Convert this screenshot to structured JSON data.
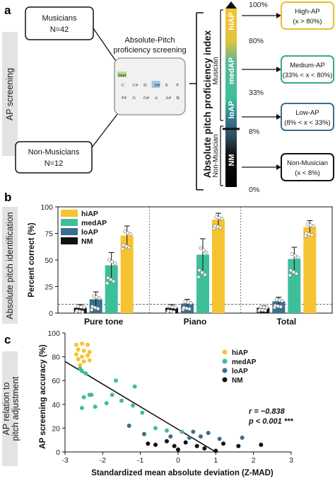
{
  "panel_a": {
    "letter": "a",
    "side_label": "AP screening",
    "musicians_box": [
      "Musicians",
      "N=42"
    ],
    "nonmusicians_box": [
      "Non-Musicians",
      "N=12"
    ],
    "screening_title": [
      "Absolute-Pitch",
      "proficiency screening"
    ],
    "screen": {
      "start_label": "Start",
      "row1": [
        "C",
        "C#",
        "D",
        "D#",
        "E",
        "F"
      ],
      "row2": [
        "F#",
        "G",
        "G#",
        "A",
        "A#",
        "B"
      ],
      "highlighted": "D#"
    },
    "index_title": "Absolute pitch proficiency index",
    "musician_label": "Musician",
    "nonmusician_label": "Non-Musician",
    "segments": [
      "hiAP",
      "medAP",
      "loAP",
      "NM"
    ],
    "percent_marks": [
      "100%",
      "80%",
      "33%",
      "8%",
      "0%"
    ],
    "categories": [
      {
        "name": "High-AP",
        "range": "(x > 80%)",
        "border": "#e8c02a"
      },
      {
        "name": "Medium-AP",
        "range": "(33% < x < 80%)",
        "border": "#3aa88e"
      },
      {
        "name": "Low-AP",
        "range": "(8% < x < 33%)",
        "border": "#3a6f8e"
      },
      {
        "name": "Non-Musician",
        "range": "(x < 8%)",
        "border": "#111111"
      }
    ],
    "colors": {
      "hiAP": "#f5c430",
      "medAP": "#3dbf9a",
      "loAP": "#3a6f8e",
      "NM": "#111111"
    }
  },
  "panel_b": {
    "letter": "b",
    "side_label": "Absolute pitch identification"
  },
  "panel_c": {
    "letter": "c",
    "side_label": [
      "AP relation to",
      "pitch adjustment"
    ],
    "stat_r": "r = −0.838",
    "stat_p": "p < 0.001 ***"
  },
  "chart_data": [
    {
      "type": "bar",
      "ylabel": "Percent correct (%)",
      "ylim": [
        0,
        100
      ],
      "yticks": [
        0,
        25,
        50,
        75,
        100
      ],
      "categories": [
        "Pure tone",
        "Piano",
        "Total"
      ],
      "reference_line": 8.33,
      "legend_placement": "top-left",
      "series": [
        {
          "name": "NM",
          "color": "#111111",
          "values": [
            5,
            5,
            5
          ],
          "errors": [
            3,
            3,
            2
          ]
        },
        {
          "name": "loAP",
          "color": "#3a6f8e",
          "values": [
            13,
            9,
            11
          ],
          "errors": [
            7,
            4,
            4
          ]
        },
        {
          "name": "medAP",
          "color": "#3dbf9a",
          "values": [
            45,
            55,
            51
          ],
          "errors": [
            12,
            15,
            11
          ]
        },
        {
          "name": "hiAP",
          "color": "#f5c430",
          "values": [
            73,
            88,
            81
          ],
          "errors": [
            9,
            6,
            6
          ]
        }
      ],
      "legend_order": [
        "hiAP",
        "medAP",
        "loAP",
        "NM"
      ]
    },
    {
      "type": "scatter",
      "xlabel": "Standardized mean absolute deviation (Z-MAD)",
      "ylabel": "AP screening accuracy (%)",
      "xlim": [
        -3,
        3
      ],
      "ylim": [
        0,
        100
      ],
      "xticks": [
        -3,
        -2,
        -1,
        0,
        1,
        2,
        3
      ],
      "yticks": [
        0,
        20,
        40,
        60,
        80,
        100
      ],
      "legend_placement": "top-right",
      "fit_line": {
        "x": [
          -3,
          1
        ],
        "y": [
          76,
          0
        ]
      },
      "series": [
        {
          "name": "hiAP",
          "color": "#f5c430",
          "points": [
            [
              -2.7,
              90
            ],
            [
              -2.55,
              91
            ],
            [
              -2.4,
              90
            ],
            [
              -2.65,
              86
            ],
            [
              -2.5,
              85
            ],
            [
              -2.35,
              84
            ],
            [
              -2.7,
              82
            ],
            [
              -2.55,
              80
            ],
            [
              -2.4,
              81
            ],
            [
              -2.65,
              78
            ],
            [
              -2.5,
              76
            ],
            [
              -2.35,
              77
            ],
            [
              -2.6,
              73
            ]
          ]
        },
        {
          "name": "medAP",
          "color": "#3dbf9a",
          "points": [
            [
              -2.6,
              70
            ],
            [
              -2.55,
              68
            ],
            [
              -2.45,
              66
            ],
            [
              -2.3,
              48
            ],
            [
              -2.5,
              46
            ],
            [
              -2.55,
              37
            ],
            [
              -2.2,
              38
            ],
            [
              -1.75,
              48
            ],
            [
              -1.5,
              43
            ],
            [
              -1.2,
              39
            ],
            [
              -1.65,
              60
            ],
            [
              -1.15,
              55
            ],
            [
              -0.95,
              33
            ],
            [
              -0.6,
              20
            ],
            [
              -0.3,
              18
            ],
            [
              0.1,
              17
            ],
            [
              -2.35,
              48
            ],
            [
              -1.9,
              41
            ]
          ]
        },
        {
          "name": "loAP",
          "color": "#3a6f8e",
          "points": [
            [
              -1.3,
              22
            ],
            [
              -0.9,
              15
            ],
            [
              -0.2,
              13
            ],
            [
              0.3,
              12
            ],
            [
              0.6,
              13
            ],
            [
              0.8,
              16
            ],
            [
              1.1,
              11
            ],
            [
              1.7,
              12
            ],
            [
              0.4,
              17
            ]
          ]
        },
        {
          "name": "NM",
          "color": "#111111",
          "points": [
            [
              -0.8,
              7
            ],
            [
              -0.6,
              6
            ],
            [
              -0.1,
              5
            ],
            [
              0.2,
              8
            ],
            [
              0.5,
              5
            ],
            [
              0.7,
              3
            ],
            [
              1.2,
              7
            ],
            [
              1.6,
              5
            ],
            [
              2.2,
              6
            ],
            [
              -0.3,
              9
            ],
            [
              0.0,
              2
            ],
            [
              1.0,
              1
            ]
          ]
        }
      ]
    }
  ]
}
